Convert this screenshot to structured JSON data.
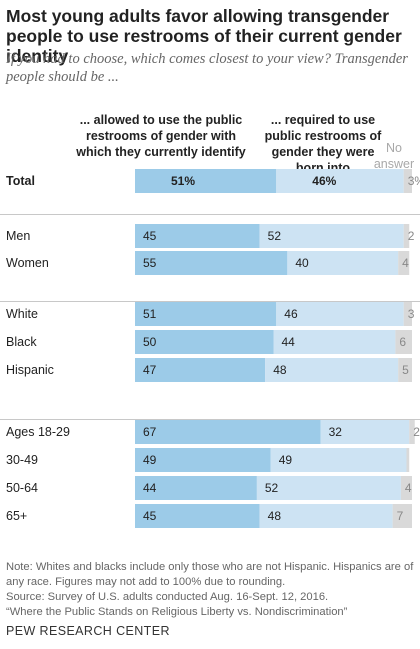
{
  "title": "Most young adults favor allowing transgender people to use restrooms of their current gender identity",
  "subtitle": "If you had to choose, which comes closest to your view? Transgender people should be ...",
  "chart_data": {
    "type": "bar",
    "stacked": true,
    "orientation": "horizontal",
    "series": [
      {
        "name": "... allowed to use the public restrooms of gender with which they currently identify",
        "color": "#9ccbe8"
      },
      {
        "name": "... required to use public restrooms of gender they were born into",
        "color": "#cde3f3"
      },
      {
        "name": "No answer",
        "color": "#d9d9d9"
      }
    ],
    "rows": [
      {
        "label": "Total",
        "values": [
          51,
          46,
          3
        ],
        "labels": [
          "51%",
          "46%",
          "3%"
        ],
        "bold": true
      },
      {
        "label": "Men",
        "values": [
          45,
          52,
          2
        ],
        "labels": [
          "45",
          "52",
          "2"
        ]
      },
      {
        "label": "Women",
        "values": [
          55,
          40,
          4
        ],
        "labels": [
          "55",
          "40",
          "4"
        ]
      },
      {
        "label": "White",
        "values": [
          51,
          46,
          3
        ],
        "labels": [
          "51",
          "46",
          "3"
        ]
      },
      {
        "label": "Black",
        "values": [
          50,
          44,
          6
        ],
        "labels": [
          "50",
          "44",
          "6"
        ]
      },
      {
        "label": "Hispanic",
        "values": [
          47,
          48,
          5
        ],
        "labels": [
          "47",
          "48",
          "5"
        ]
      },
      {
        "label": "Ages 18-29",
        "values": [
          67,
          32,
          2
        ],
        "labels": [
          "67",
          "32",
          "2"
        ]
      },
      {
        "label": "30-49",
        "values": [
          49,
          49,
          1
        ],
        "labels": [
          "49",
          "49",
          ""
        ]
      },
      {
        "label": "50-64",
        "values": [
          44,
          52,
          4
        ],
        "labels": [
          "44",
          "52",
          "4"
        ]
      },
      {
        "label": "65+",
        "values": [
          45,
          48,
          7
        ],
        "labels": [
          "45",
          "48",
          "7"
        ]
      }
    ]
  },
  "note": "Note: Whites and blacks include only those who are not Hispanic. Hispanics are of any race. Figures may not add to 100% due to rounding.",
  "source": "Source: Survey of U.S. adults conducted Aug. 16-Sept. 12, 2016.",
  "report": "“Where the Public Stands on Religious Liberty vs. Nondiscrimination”",
  "brand": "PEW RESEARCH CENTER"
}
